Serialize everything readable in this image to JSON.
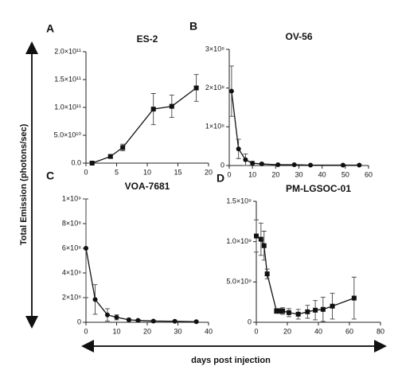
{
  "y_label": "Total Emission (photons/sec)",
  "x_label": "days post injection",
  "chart_data": [
    {
      "type": "line",
      "panel": "A",
      "title": "ES-2",
      "marker": "square",
      "x": [
        1,
        4,
        6,
        11,
        14,
        18
      ],
      "values": [
        0,
        12000000000,
        28000000000,
        97000000000,
        102000000000,
        135000000000
      ],
      "errors": [
        2000000000,
        3000000000,
        6000000000,
        28000000000,
        20000000000,
        24000000000
      ],
      "xlim": [
        0,
        20
      ],
      "xticks": [
        0,
        5,
        10,
        15,
        20
      ],
      "ylim": [
        0,
        200000000000
      ],
      "yticks": [
        {
          "value": 0,
          "label": "0.0"
        },
        {
          "value": 50000000000,
          "label": "5.0×10¹⁰"
        },
        {
          "value": 100000000000,
          "label": "1.0×10¹¹"
        },
        {
          "value": 150000000000,
          "label": "1.5×10¹¹"
        },
        {
          "value": 200000000000,
          "label": "2.0×10¹¹"
        }
      ]
    },
    {
      "type": "line",
      "panel": "B",
      "title": "OV-56",
      "marker": "circle",
      "x": [
        1,
        4,
        7,
        10,
        14,
        21,
        28,
        35,
        49,
        56
      ],
      "values": [
        192000000,
        43000000,
        15000000,
        6000000,
        4000000,
        2000000,
        2000000,
        1000000,
        1000000,
        1000000
      ],
      "errors": [
        65000000,
        25000000,
        15000000,
        5000000,
        3000000,
        2000000,
        1000000,
        1000000,
        1000000,
        1000000
      ],
      "xlim": [
        0,
        60
      ],
      "xticks": [
        0,
        10,
        20,
        30,
        40,
        50,
        60
      ],
      "ylim": [
        0,
        300000000
      ],
      "yticks": [
        0,
        {
          "value": 100000000,
          "label": "1×10⁸"
        },
        {
          "value": 200000000,
          "label": "2×10⁸"
        },
        {
          "value": 300000000,
          "label": "3×10⁸"
        }
      ]
    },
    {
      "type": "line",
      "panel": "C",
      "title": "VOA-7681",
      "marker": "circle",
      "x": [
        0,
        3,
        7,
        10,
        14,
        17,
        22,
        29,
        36
      ],
      "values": [
        600000000,
        185000000,
        60000000,
        40000000,
        20000000,
        15000000,
        10000000,
        8000000,
        5000000
      ],
      "errors": [
        400000000,
        120000000,
        50000000,
        20000000,
        10000000,
        8000000,
        5000000,
        4000000,
        3000000
      ],
      "xlim": [
        0,
        40
      ],
      "xticks": [
        0,
        10,
        20,
        30,
        40
      ],
      "ylim": [
        0,
        1000000000
      ],
      "yticks": [
        0,
        {
          "value": 200000000,
          "label": "2×10⁸"
        },
        {
          "value": 400000000,
          "label": "4×10⁸"
        },
        {
          "value": 600000000,
          "label": "6×10⁸"
        },
        {
          "value": 800000000,
          "label": "8×10⁸"
        },
        {
          "value": 1000000000,
          "label": "1×10⁹"
        }
      ]
    },
    {
      "type": "line",
      "panel": "D",
      "title": "PM-LGSOC-01",
      "marker": "square",
      "x": [
        0,
        3,
        5,
        7,
        13,
        15,
        17,
        21,
        27,
        33,
        38,
        43,
        49,
        63
      ],
      "values": [
        1070000000,
        1030000000,
        950000000,
        600000000,
        140000000,
        140000000,
        140000000,
        120000000,
        100000000,
        130000000,
        150000000,
        160000000,
        200000000,
        300000000
      ],
      "errors": [
        200000000,
        200000000,
        180000000,
        60000000,
        30000000,
        30000000,
        40000000,
        50000000,
        60000000,
        80000000,
        120000000,
        150000000,
        160000000,
        260000000
      ],
      "xlim": [
        0,
        80
      ],
      "xticks": [
        0,
        20,
        40,
        60,
        80
      ],
      "ylim": [
        0,
        1500000000
      ],
      "yticks": [
        0,
        {
          "value": 500000000,
          "label": "5.0×10⁸"
        },
        {
          "value": 1000000000,
          "label": "1.0×10⁹"
        },
        {
          "value": 1500000000,
          "label": "1.5×10⁹"
        }
      ]
    }
  ]
}
